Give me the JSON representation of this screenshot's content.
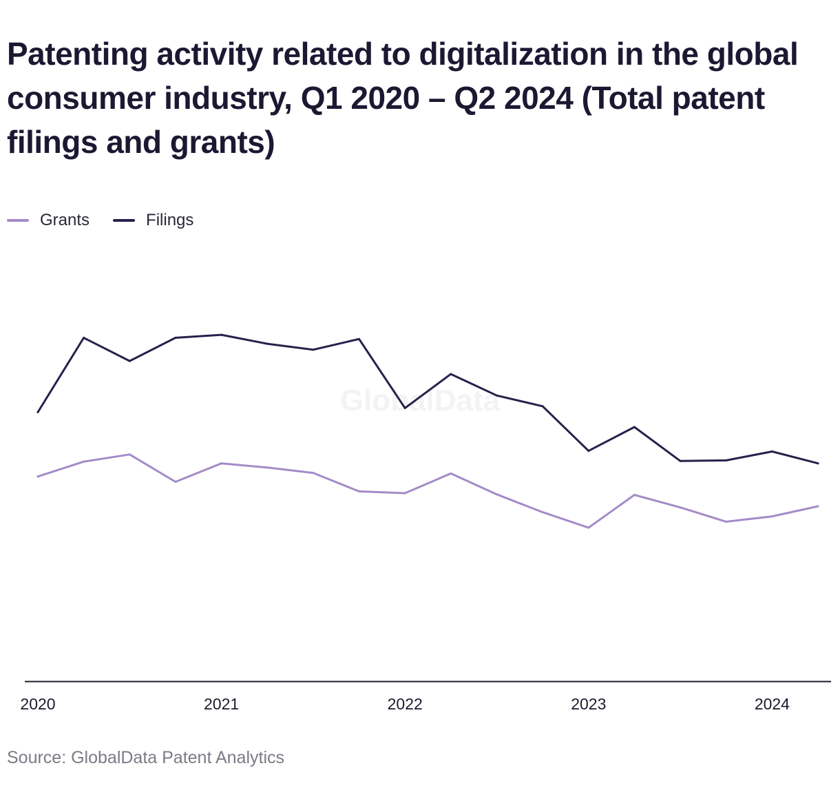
{
  "title": "Patenting activity related to digitalization in the global consumer industry, Q1 2020 – Q2 2024 (Total patent filings and grants)",
  "source": "Source: GlobalData Patent Analytics",
  "watermark": "GlobalData",
  "colors": {
    "grants": "#a48bc8",
    "filings": "#2a1f4b",
    "axis": "#1c1a2e"
  },
  "chart_data": {
    "type": "line",
    "x": [
      "Q1 2020",
      "Q2 2020",
      "Q3 2020",
      "Q4 2020",
      "Q1 2021",
      "Q2 2021",
      "Q3 2021",
      "Q4 2021",
      "Q1 2022",
      "Q2 2022",
      "Q3 2022",
      "Q4 2022",
      "Q1 2023",
      "Q2 2023",
      "Q3 2023",
      "Q4 2023",
      "Q1 2024",
      "Q2 2024"
    ],
    "xticks": [
      {
        "label": "2020",
        "index": 0
      },
      {
        "label": "2021",
        "index": 4
      },
      {
        "label": "2022",
        "index": 8
      },
      {
        "label": "2023",
        "index": 12
      },
      {
        "label": "2024",
        "index": 16
      }
    ],
    "series": [
      {
        "name": "Grants",
        "color": "#a48bc8",
        "values": [
          344,
          369,
          381,
          335,
          366,
          359,
          350,
          319,
          316,
          349,
          314,
          284,
          258,
          313,
          292,
          268,
          277,
          294
        ]
      },
      {
        "name": "Filings",
        "color": "#2a1f4b",
        "values": [
          452,
          577,
          538,
          577,
          582,
          567,
          557,
          575,
          459,
          516,
          480,
          462,
          387,
          427,
          370,
          371,
          386,
          366
        ]
      }
    ],
    "ylim": [
      0,
      950
    ],
    "grid": false,
    "legend_position": "top-left"
  }
}
